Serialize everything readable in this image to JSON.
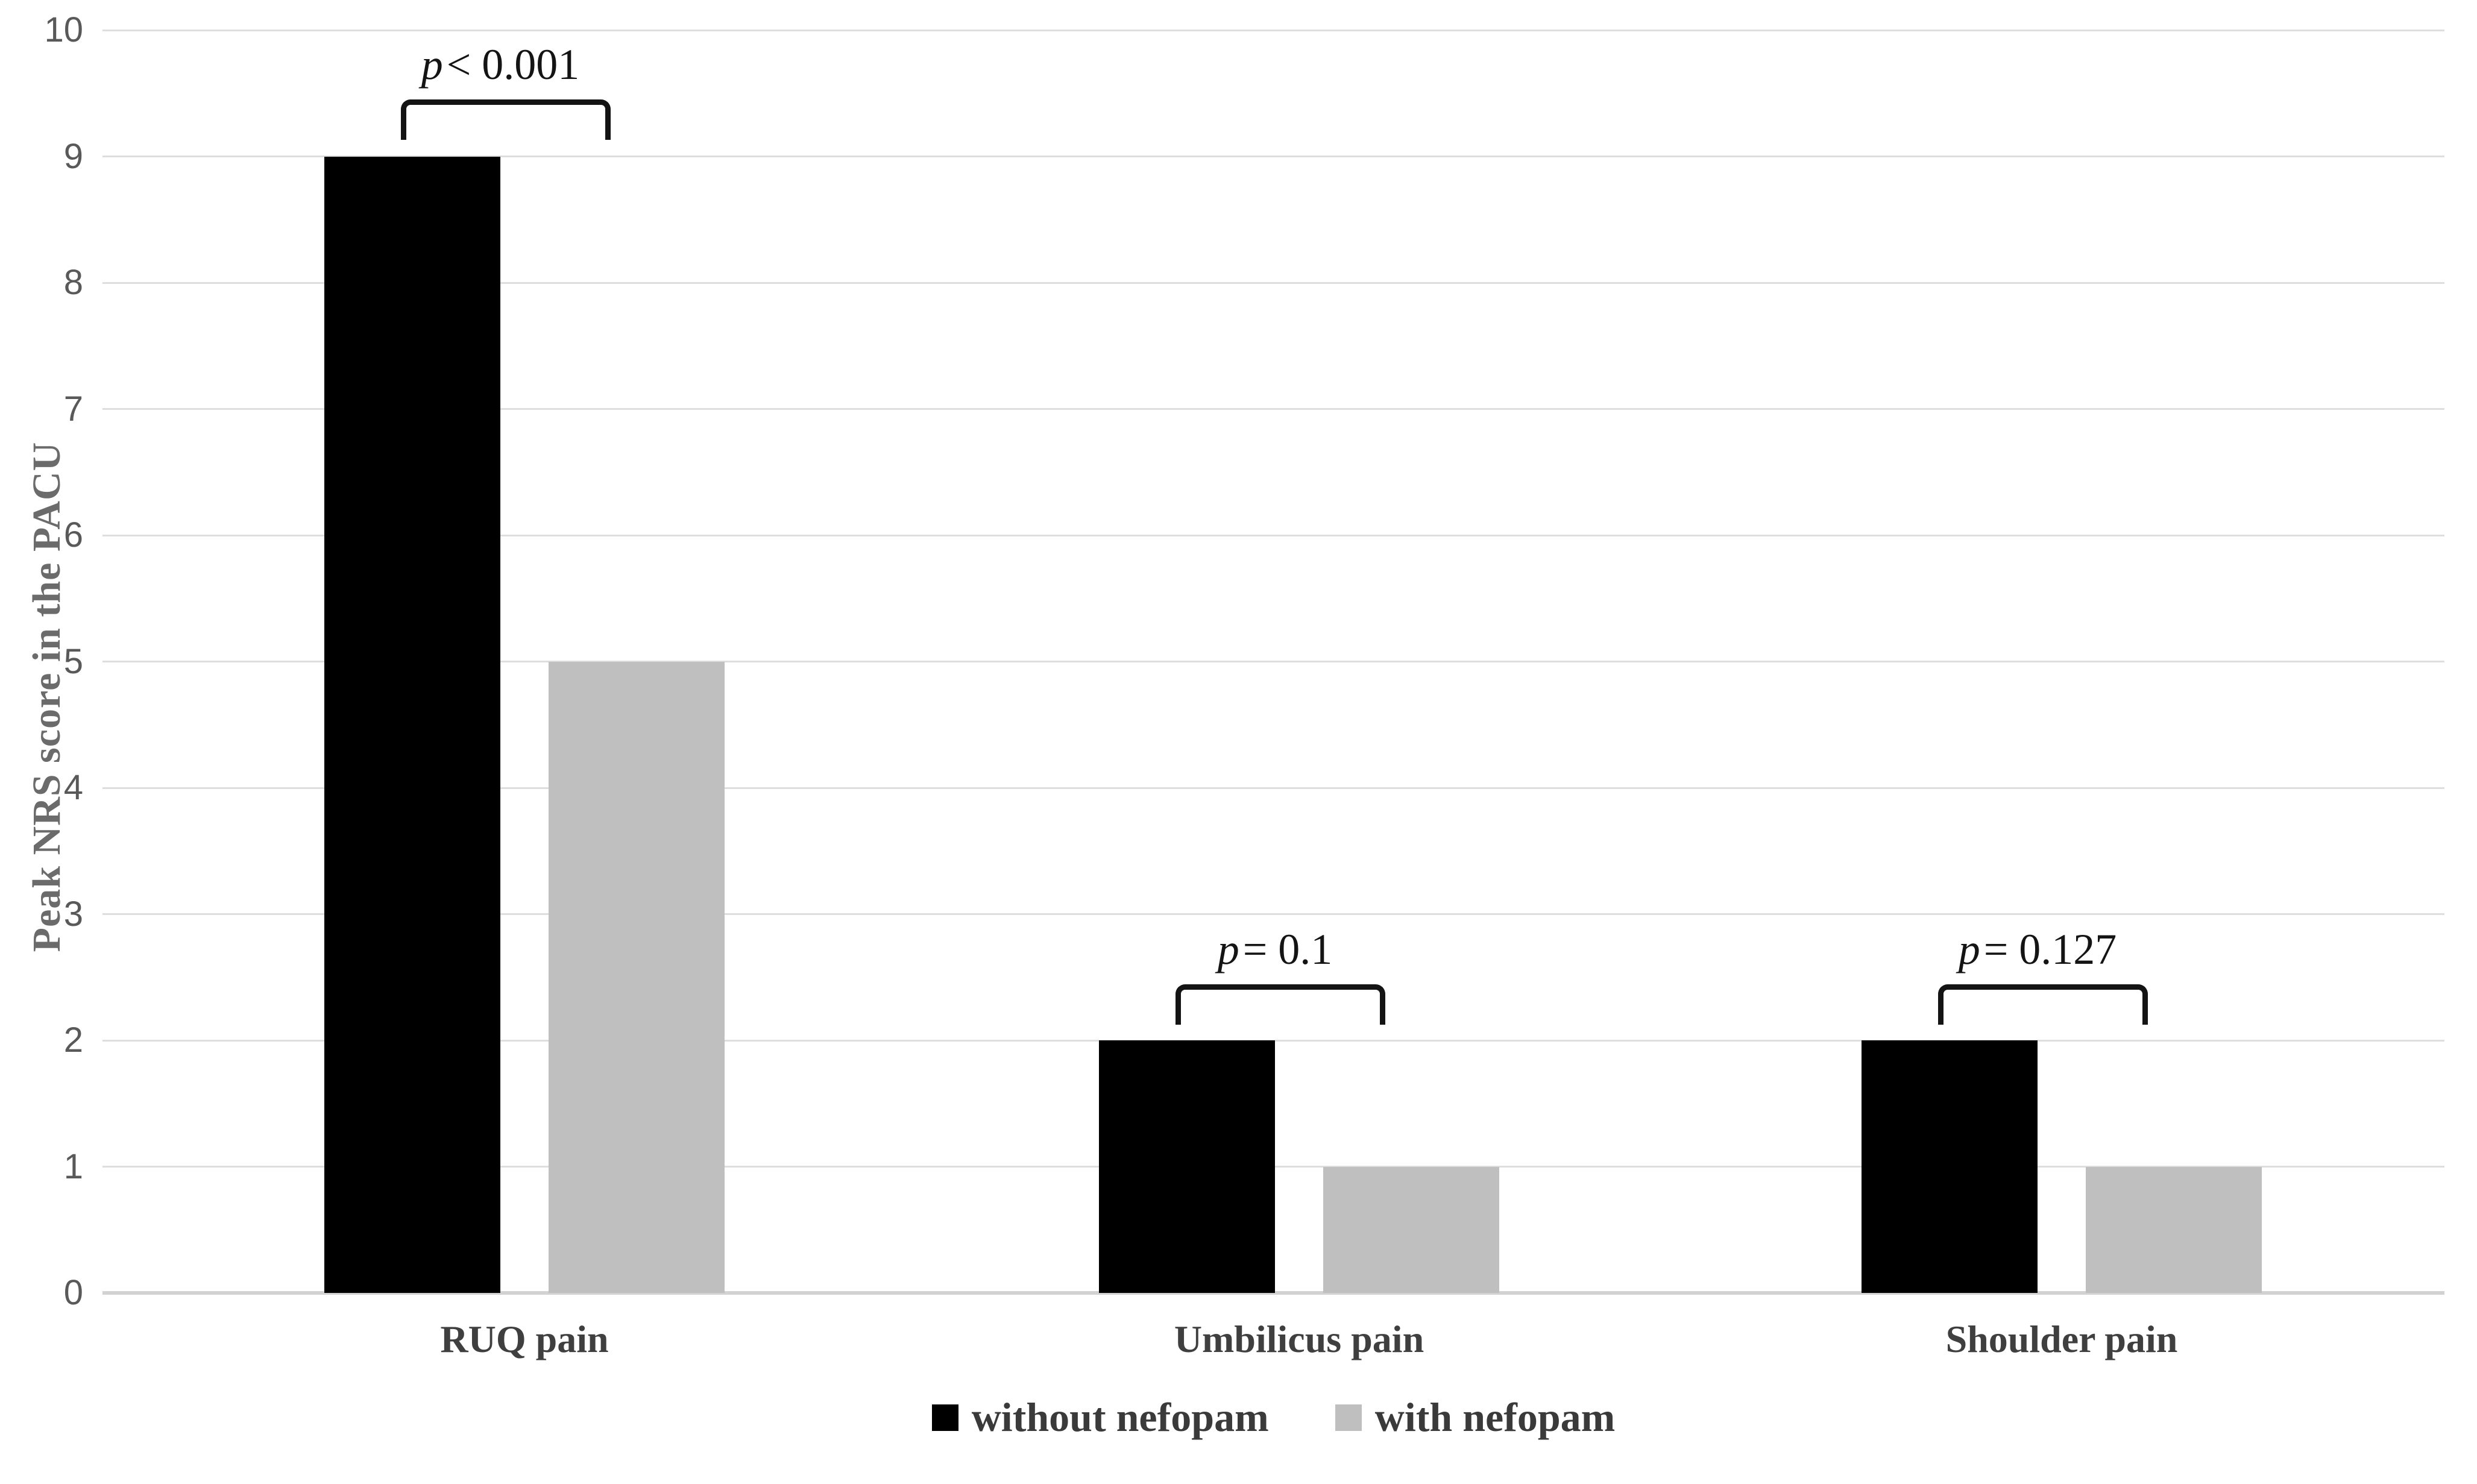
{
  "chart_data": {
    "type": "bar",
    "title": "",
    "categories": [
      "RUQ pain",
      "Umbilicus pain",
      "Shoulder pain"
    ],
    "series": [
      {
        "name": "without nefopam",
        "color": "#000000",
        "values": [
          9,
          2,
          2
        ]
      },
      {
        "name": "with nefopam",
        "color": "#bfbfbf",
        "values": [
          5,
          1,
          1
        ]
      }
    ],
    "xlabel": "",
    "ylabel": "Peak NRS score in the PACU",
    "ylim": [
      0,
      10
    ],
    "yticks": [
      0,
      1,
      2,
      3,
      4,
      5,
      6,
      7,
      8,
      9,
      10
    ],
    "grid": true,
    "legend_position": "bottom",
    "annotations": [
      {
        "category": "RUQ pain",
        "text": "p < 0.001"
      },
      {
        "category": "Umbilicus pain",
        "text": "p = 0.1"
      },
      {
        "category": "Shoulder pain",
        "text": "p = 0.127"
      }
    ]
  },
  "legend": {
    "items": [
      {
        "label": "without nefopam",
        "color": "#000000"
      },
      {
        "label": "with nefopam",
        "color": "#bfbfbf"
      }
    ]
  }
}
